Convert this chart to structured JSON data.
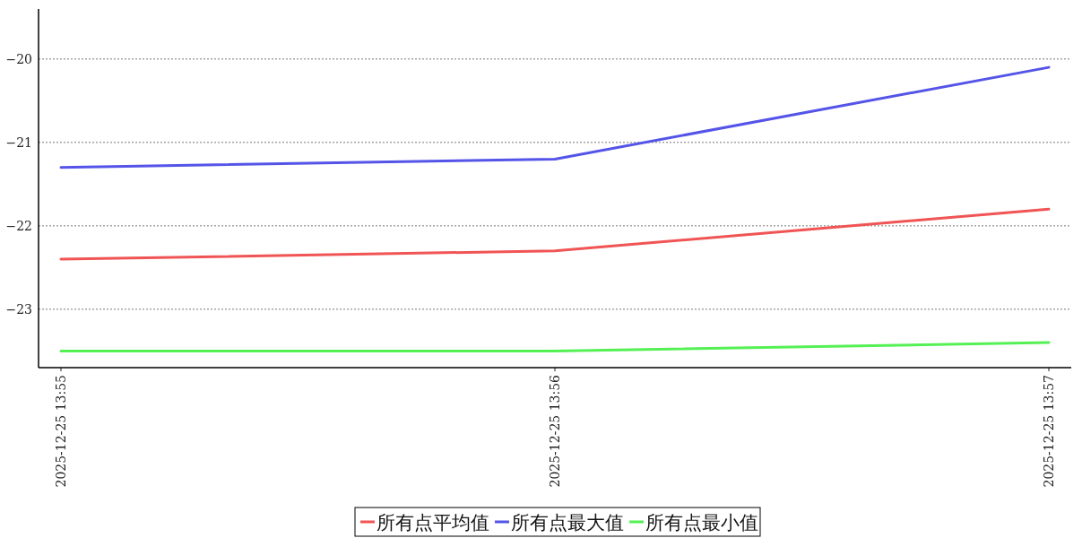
{
  "chart_data": {
    "type": "line",
    "categories": [
      "2025-12-25 13:55",
      "2025-12-25 13:56",
      "2025-12-25 13:57"
    ],
    "series": [
      {
        "name": "所有点平均值",
        "color": "#f05454",
        "values": [
          -22.4,
          -22.3,
          -21.8
        ]
      },
      {
        "name": "所有点最大值",
        "color": "#5454e8",
        "values": [
          -21.3,
          -21.2,
          -20.1
        ]
      },
      {
        "name": "所有点最小值",
        "color": "#54f054",
        "values": [
          -23.5,
          -23.5,
          -23.4
        ]
      }
    ],
    "ylim": [
      -23.7,
      -19.4
    ],
    "yticks": [
      {
        "value": -23,
        "label": "−23"
      },
      {
        "value": -22,
        "label": "−22"
      },
      {
        "value": -21,
        "label": "−21"
      },
      {
        "value": -20,
        "label": "−20"
      }
    ],
    "grid": "y",
    "legend": "bottom",
    "line_style": "solid",
    "marker": "none"
  }
}
